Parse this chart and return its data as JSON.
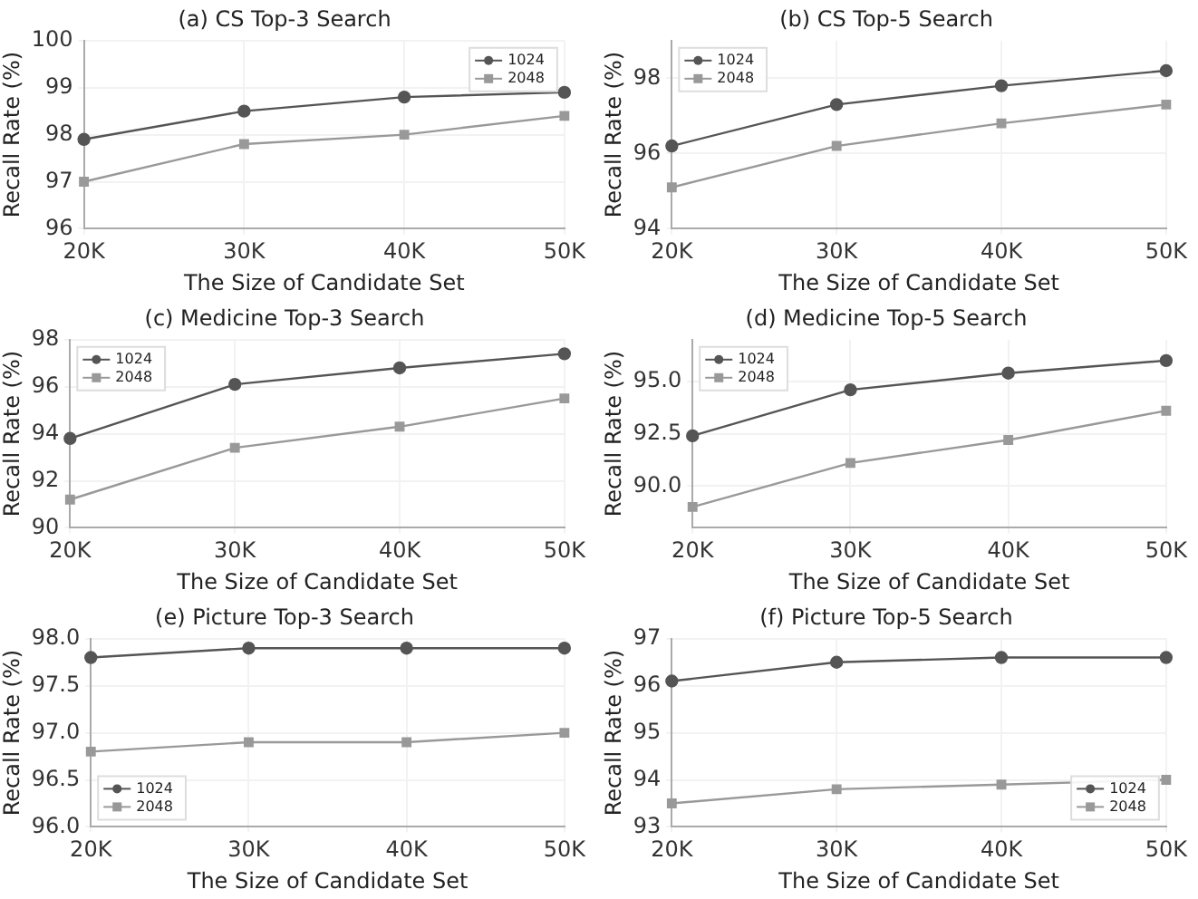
{
  "chart_data": [
    {
      "type": "line",
      "title": "(a) CS Top-3 Search",
      "xlabel": "The Size of Candidate Set",
      "ylabel": "Recall Rate (%)",
      "categories": [
        "20K",
        "30K",
        "40K",
        "50K"
      ],
      "ylim": [
        96,
        100
      ],
      "yticks": [
        96,
        97,
        98,
        99,
        100
      ],
      "grid": true,
      "legend": "top right",
      "series": [
        {
          "name": "1024",
          "color": "#555555",
          "marker": "circle",
          "values": [
            97.9,
            98.5,
            98.8,
            98.9
          ]
        },
        {
          "name": "2048",
          "color": "#999999",
          "marker": "square",
          "values": [
            97.0,
            97.8,
            98.0,
            98.4
          ]
        }
      ]
    },
    {
      "type": "line",
      "title": "(b) CS Top-5 Search",
      "xlabel": "The Size of Candidate Set",
      "ylabel": "Recall Rate (%)",
      "categories": [
        "20K",
        "30K",
        "40K",
        "50K"
      ],
      "ylim": [
        94,
        99
      ],
      "yticks": [
        94,
        96,
        98
      ],
      "grid": true,
      "legend": "top left",
      "series": [
        {
          "name": "1024",
          "color": "#555555",
          "marker": "circle",
          "values": [
            96.2,
            97.3,
            97.8,
            98.2
          ]
        },
        {
          "name": "2048",
          "color": "#999999",
          "marker": "square",
          "values": [
            95.1,
            96.2,
            96.8,
            97.3
          ]
        }
      ]
    },
    {
      "type": "line",
      "title": "(c) Medicine Top-3 Search",
      "xlabel": "The Size of Candidate Set",
      "ylabel": "Recall Rate (%)",
      "categories": [
        "20K",
        "30K",
        "40K",
        "50K"
      ],
      "ylim": [
        90,
        98
      ],
      "yticks": [
        90,
        92,
        94,
        96,
        98
      ],
      "grid": true,
      "legend": "top left",
      "series": [
        {
          "name": "1024",
          "color": "#555555",
          "marker": "circle",
          "values": [
            93.8,
            96.1,
            96.8,
            97.4
          ]
        },
        {
          "name": "2048",
          "color": "#999999",
          "marker": "square",
          "values": [
            91.2,
            93.4,
            94.3,
            95.5
          ]
        }
      ]
    },
    {
      "type": "line",
      "title": "(d) Medicine Top-5 Search",
      "xlabel": "The Size of Candidate Set",
      "ylabel": "Recall Rate (%)",
      "categories": [
        "20K",
        "30K",
        "40K",
        "50K"
      ],
      "ylim": [
        88,
        97
      ],
      "yticks": [
        {
          "value": 90,
          "label": "90.0"
        },
        {
          "value": 92.5,
          "label": "92.5"
        },
        {
          "value": 95,
          "label": "95.0"
        }
      ],
      "grid": true,
      "legend": "top left",
      "series": [
        {
          "name": "1024",
          "color": "#555555",
          "marker": "circle",
          "values": [
            92.4,
            94.6,
            95.4,
            96.0
          ]
        },
        {
          "name": "2048",
          "color": "#999999",
          "marker": "square",
          "values": [
            89.0,
            91.1,
            92.2,
            93.6
          ]
        }
      ]
    },
    {
      "type": "line",
      "title": "(e) Picture Top-3 Search",
      "xlabel": "The Size of Candidate Set",
      "ylabel": "Recall Rate (%)",
      "categories": [
        "20K",
        "30K",
        "40K",
        "50K"
      ],
      "ylim": [
        96,
        98
      ],
      "yticks": [
        {
          "value": 96,
          "label": "96.0"
        },
        {
          "value": 96.5,
          "label": "96.5"
        },
        {
          "value": 97,
          "label": "97.0"
        },
        {
          "value": 97.5,
          "label": "97.5"
        },
        {
          "value": 98,
          "label": "98.0"
        }
      ],
      "grid": true,
      "legend": "bottom left",
      "series": [
        {
          "name": "1024",
          "color": "#555555",
          "marker": "circle",
          "values": [
            97.8,
            97.9,
            97.9,
            97.9
          ]
        },
        {
          "name": "2048",
          "color": "#999999",
          "marker": "square",
          "values": [
            96.8,
            96.9,
            96.9,
            97.0
          ]
        }
      ]
    },
    {
      "type": "line",
      "title": "(f) Picture Top-5 Search",
      "xlabel": "The Size of Candidate Set",
      "ylabel": "Recall Rate (%)",
      "categories": [
        "20K",
        "30K",
        "40K",
        "50K"
      ],
      "ylim": [
        93,
        97
      ],
      "yticks": [
        93,
        94,
        95,
        96,
        97
      ],
      "grid": true,
      "legend": "bottom right",
      "series": [
        {
          "name": "1024",
          "color": "#555555",
          "marker": "circle",
          "values": [
            96.1,
            96.5,
            96.6,
            96.6
          ]
        },
        {
          "name": "2048",
          "color": "#999999",
          "marker": "square",
          "values": [
            93.5,
            93.8,
            93.9,
            94.0
          ]
        }
      ]
    }
  ]
}
